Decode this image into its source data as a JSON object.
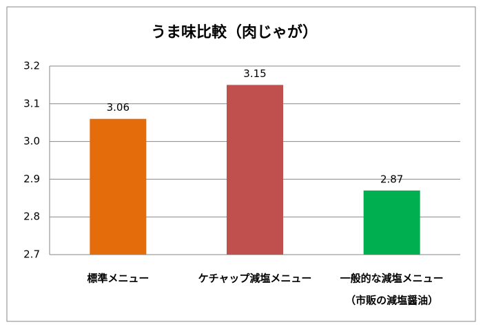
{
  "chart_data": {
    "type": "bar",
    "title": "うま味比較（肉じゃが）",
    "categories": [
      "標準メニュー",
      "ケチャップ減塩メニュー",
      [
        "一般的な減塩メニュー",
        "（市販の減塩醤油）"
      ]
    ],
    "values": [
      3.06,
      3.15,
      2.87
    ],
    "colors": [
      "#e46c0a",
      "#c0504d",
      "#00b050"
    ],
    "ylim": [
      2.7,
      3.2
    ],
    "yticks": [
      2.7,
      2.8,
      2.9,
      {
        "value": 3,
        "label": "3.0"
      },
      3.1,
      3.2
    ],
    "grid": true
  }
}
